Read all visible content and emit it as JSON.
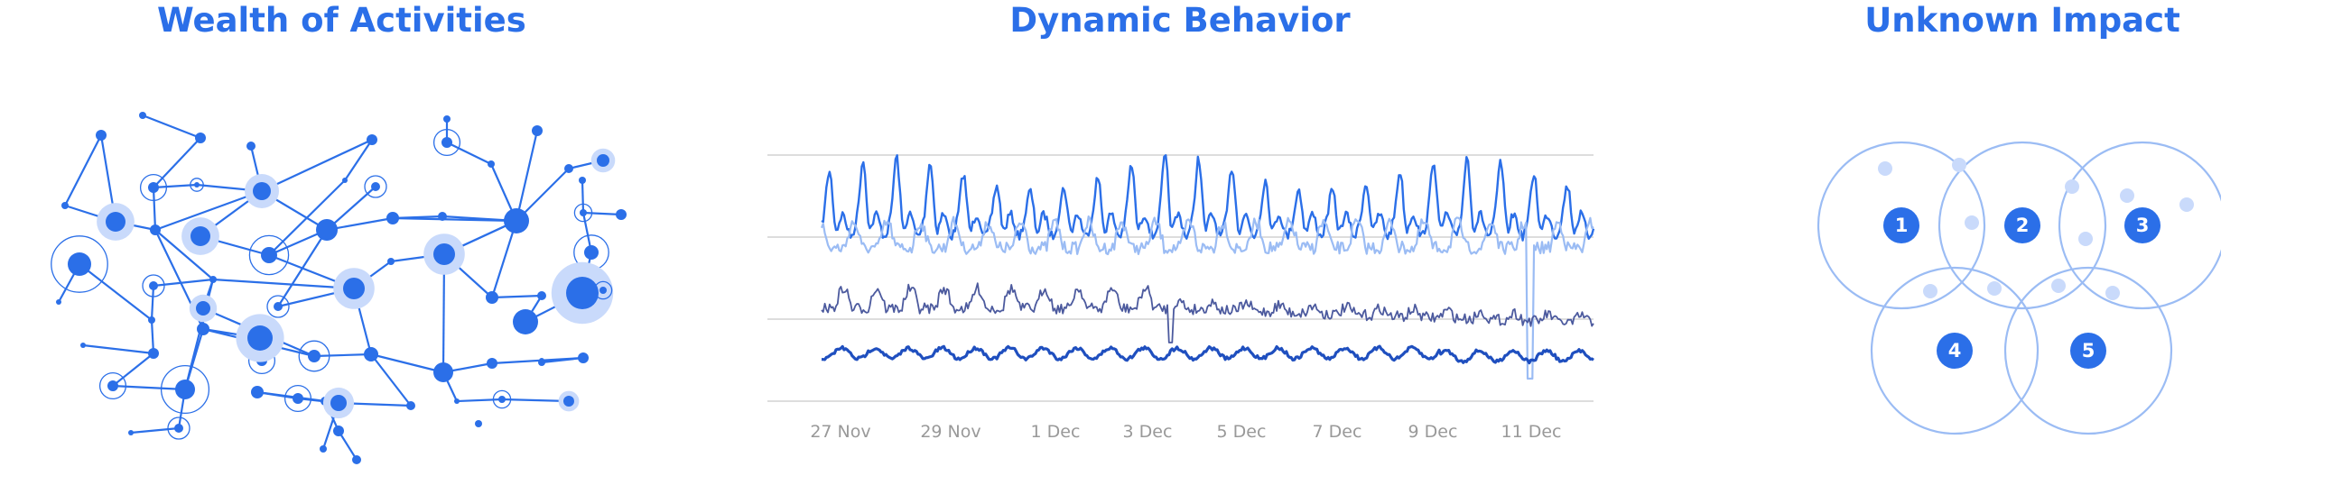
{
  "titles": [
    "Wealth of Activities",
    "Dynamic Behavior",
    "Unknown Impact"
  ],
  "colors": {
    "primary": "#2b6fe8",
    "light": "#9bbcf4",
    "pale": "#c9dafb",
    "navy": "#4c5a9e",
    "darkblue": "#1f4fbf",
    "grid": "#dddddd"
  },
  "chart_data": {
    "type": "line",
    "x_tick_labels": [
      "27 Nov",
      "29 Nov",
      "1 Dec",
      "3 Dec",
      "5 Dec",
      "7 Dec",
      "9 Dec",
      "11 Dec"
    ],
    "grid": true,
    "y_axis_labels": "none",
    "series": [
      {
        "style": "bright-blue",
        "pattern": "strong daily oscillation"
      },
      {
        "style": "light-blue",
        "pattern": "daily oscillation with a sharp drop near 11 Dec"
      },
      {
        "style": "navy",
        "pattern": "noisy, declining after 3 Dec"
      },
      {
        "style": "dark-blue-thick",
        "pattern": "low-amplitude daily oscillation"
      }
    ]
  },
  "venn": {
    "labels": [
      "1",
      "2",
      "3",
      "4",
      "5"
    ]
  }
}
